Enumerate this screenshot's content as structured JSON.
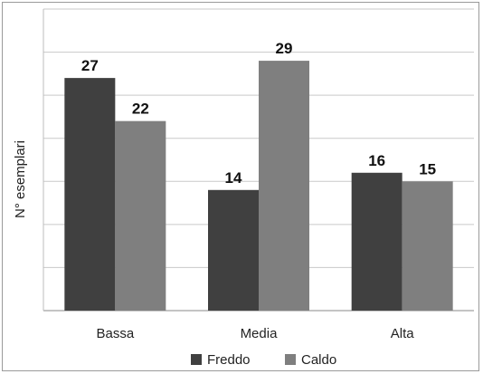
{
  "chart_data": {
    "type": "bar",
    "categories": [
      "Bassa",
      "Media",
      "Alta"
    ],
    "series": [
      {
        "name": "Freddo",
        "values": [
          27,
          14,
          16
        ],
        "color": "#404040"
      },
      {
        "name": "Caldo",
        "values": [
          22,
          29,
          15
        ],
        "color": "#7f7f7f"
      }
    ],
    "title": "",
    "xlabel": "",
    "ylabel": "N° esemplari",
    "ylim": [
      0,
      35
    ],
    "grid": true,
    "legend": "bottom"
  }
}
